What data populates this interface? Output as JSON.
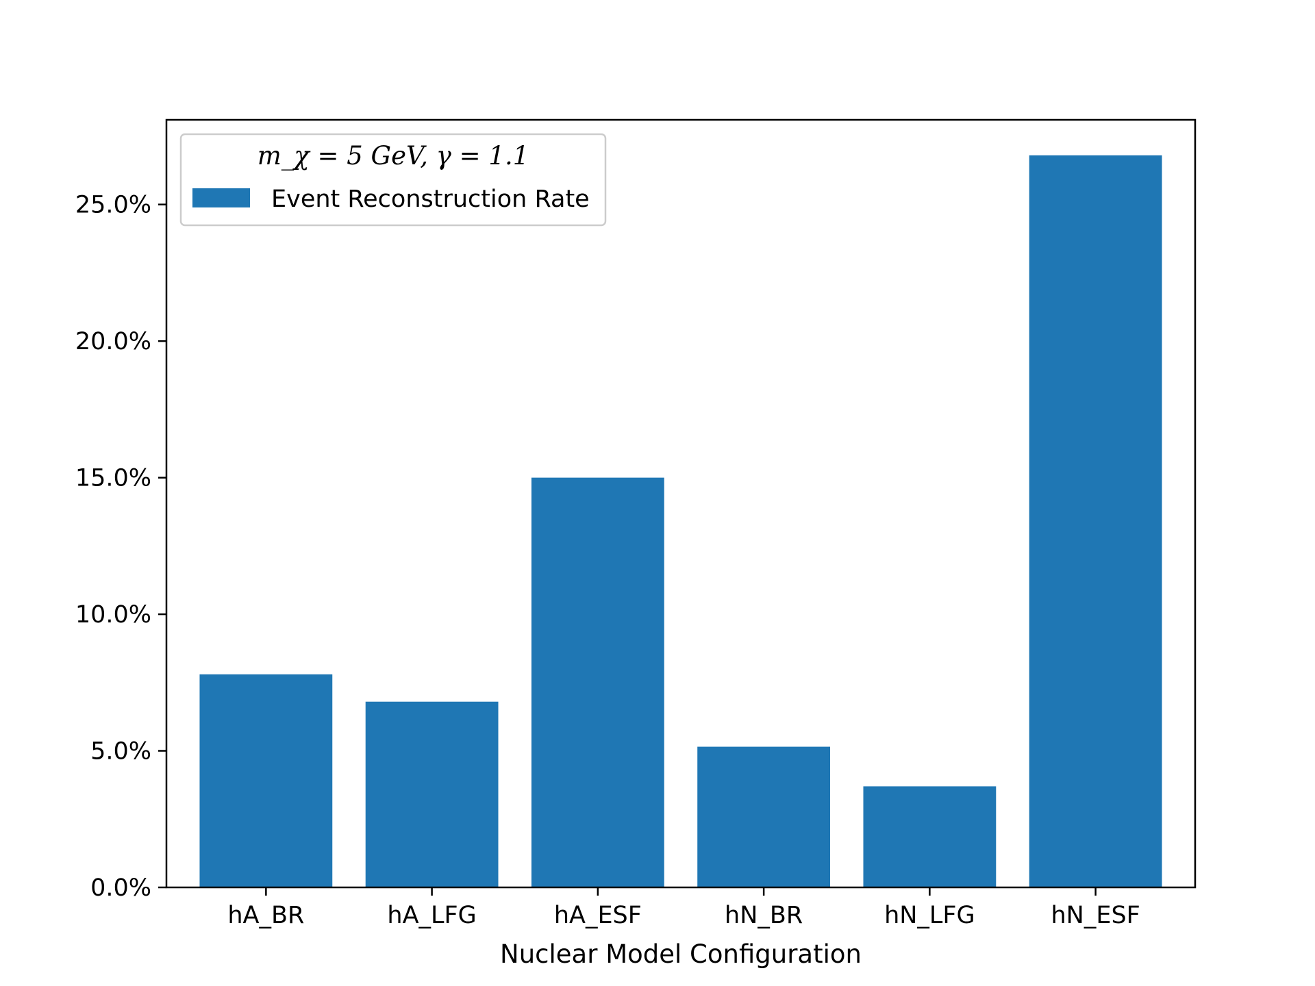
{
  "chart_data": {
    "type": "bar",
    "categories": [
      "hA_BR",
      "hA_LFG",
      "hA_ESF",
      "hN_BR",
      "hN_LFG",
      "hN_ESF"
    ],
    "values": [
      7.8,
      6.8,
      15.0,
      5.15,
      3.7,
      26.8
    ],
    "series": [
      {
        "name": "Event Reconstruction Rate",
        "values": [
          7.8,
          6.8,
          15.0,
          5.15,
          3.7,
          26.8
        ],
        "color": "#1f77b4"
      }
    ],
    "ylim": [
      0,
      28.1
    ],
    "yticks": [
      0,
      5,
      10,
      15,
      20,
      25
    ],
    "ytick_labels": [
      "0.0%",
      "5.0%",
      "10.0%",
      "15.0%",
      "20.0%",
      "25.0%"
    ],
    "xlabel": "Nuclear Model Configuration",
    "ylabel": "",
    "title": "",
    "legend": {
      "title": "m_χ = 5  GeV, γ = 1.1",
      "placement": "top-left"
    },
    "grid": false
  }
}
